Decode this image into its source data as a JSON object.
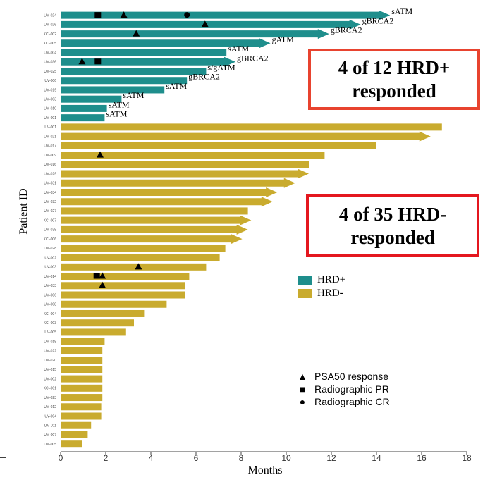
{
  "chart_data": {
    "type": "bar",
    "orientation": "horizontal",
    "xlabel": "Months",
    "ylabel": "Patient ID",
    "xlim": [
      0,
      18
    ],
    "xticks": [
      0,
      2,
      4,
      6,
      8,
      10,
      12,
      14,
      16,
      18
    ],
    "colors": {
      "HRD+": "#1e8e8c",
      "HRD-": "#c9ab2e"
    },
    "legend_series": [
      "HRD+",
      "HRD-"
    ],
    "legend_markers": [
      {
        "shape": "triangle",
        "label": "PSA50 response"
      },
      {
        "shape": "square",
        "label": "Radiographic PR"
      },
      {
        "shape": "circle",
        "label": "Radiographic CR"
      }
    ],
    "callouts": [
      {
        "line1": "4 of 12 HRD+",
        "line2": "responded"
      },
      {
        "line1": "4 of 35 HRD-",
        "line2": "responded"
      }
    ],
    "patients": [
      {
        "id": "UM-024",
        "group": "HRD+",
        "months": 14.6,
        "ongoing": true,
        "mutation": "sATM",
        "markers": [
          {
            "t": 1.65,
            "shape": "square"
          },
          {
            "t": 2.8,
            "shape": "triangle"
          },
          {
            "t": 5.6,
            "shape": "circle"
          }
        ]
      },
      {
        "id": "UM-026",
        "group": "HRD+",
        "months": 13.3,
        "ongoing": true,
        "mutation": "gBRCA2",
        "markers": [
          {
            "t": 6.4,
            "shape": "triangle"
          }
        ]
      },
      {
        "id": "KCI-002",
        "group": "HRD+",
        "months": 11.9,
        "ongoing": true,
        "mutation": "gBRCA2",
        "markers": [
          {
            "t": 3.35,
            "shape": "triangle"
          }
        ]
      },
      {
        "id": "KCI-005",
        "group": "HRD+",
        "months": 9.3,
        "ongoing": true,
        "mutation": "gATM",
        "markers": []
      },
      {
        "id": "UM-004",
        "group": "HRD+",
        "months": 7.35,
        "ongoing": false,
        "mutation": "sATM",
        "markers": []
      },
      {
        "id": "UM-036",
        "group": "HRD+",
        "months": 7.75,
        "ongoing": true,
        "mutation": "gBRCA2",
        "markers": [
          {
            "t": 0.95,
            "shape": "triangle"
          },
          {
            "t": 1.65,
            "shape": "square"
          }
        ]
      },
      {
        "id": "UM-025",
        "group": "HRD+",
        "months": 6.45,
        "ongoing": false,
        "mutation": "s/gATM",
        "markers": []
      },
      {
        "id": "UV-006",
        "group": "HRD+",
        "months": 5.6,
        "ongoing": false,
        "mutation": "gBRCA2",
        "markers": []
      },
      {
        "id": "UM-019",
        "group": "HRD+",
        "months": 4.6,
        "ongoing": false,
        "mutation": "sATM",
        "markers": []
      },
      {
        "id": "UM-003",
        "group": "HRD+",
        "months": 2.7,
        "ongoing": false,
        "mutation": "sATM",
        "markers": []
      },
      {
        "id": "UM-010",
        "group": "HRD+",
        "months": 2.05,
        "ongoing": false,
        "mutation": "sATM",
        "markers": []
      },
      {
        "id": "UM-001",
        "group": "HRD+",
        "months": 1.95,
        "ongoing": false,
        "mutation": "sATM",
        "markers": []
      },
      {
        "id": "UV-001",
        "group": "HRD-",
        "months": 16.9,
        "ongoing": false,
        "markers": []
      },
      {
        "id": "UM-021",
        "group": "HRD-",
        "months": 16.4,
        "ongoing": true,
        "markers": []
      },
      {
        "id": "UM-017",
        "group": "HRD-",
        "months": 14.0,
        "ongoing": false,
        "markers": []
      },
      {
        "id": "UM-009",
        "group": "HRD-",
        "months": 11.7,
        "ongoing": false,
        "markers": [
          {
            "t": 1.75,
            "shape": "triangle"
          }
        ]
      },
      {
        "id": "UM-016",
        "group": "HRD-",
        "months": 11.0,
        "ongoing": false,
        "markers": []
      },
      {
        "id": "UM-029",
        "group": "HRD-",
        "months": 11.0,
        "ongoing": true,
        "markers": []
      },
      {
        "id": "UM-031",
        "group": "HRD-",
        "months": 10.4,
        "ongoing": true,
        "markers": []
      },
      {
        "id": "UM-034",
        "group": "HRD-",
        "months": 9.6,
        "ongoing": true,
        "markers": []
      },
      {
        "id": "UM-032",
        "group": "HRD-",
        "months": 9.4,
        "ongoing": true,
        "markers": []
      },
      {
        "id": "UM-027",
        "group": "HRD-",
        "months": 8.3,
        "ongoing": false,
        "markers": []
      },
      {
        "id": "KCI-007",
        "group": "HRD-",
        "months": 8.45,
        "ongoing": true,
        "markers": []
      },
      {
        "id": "UM-035",
        "group": "HRD-",
        "months": 8.3,
        "ongoing": true,
        "markers": []
      },
      {
        "id": "KCI-006",
        "group": "HRD-",
        "months": 8.05,
        "ongoing": true,
        "markers": []
      },
      {
        "id": "UM-028",
        "group": "HRD-",
        "months": 7.3,
        "ongoing": false,
        "markers": []
      },
      {
        "id": "UV-002",
        "group": "HRD-",
        "months": 7.05,
        "ongoing": false,
        "markers": []
      },
      {
        "id": "UV-003",
        "group": "HRD-",
        "months": 6.45,
        "ongoing": false,
        "markers": [
          {
            "t": 3.45,
            "shape": "triangle"
          }
        ]
      },
      {
        "id": "UM-014",
        "group": "HRD-",
        "months": 5.7,
        "ongoing": false,
        "markers": [
          {
            "t": 1.6,
            "shape": "square"
          },
          {
            "t": 1.85,
            "shape": "triangle"
          }
        ]
      },
      {
        "id": "UM-033",
        "group": "HRD-",
        "months": 5.5,
        "ongoing": false,
        "markers": [
          {
            "t": 1.85,
            "shape": "triangle"
          }
        ]
      },
      {
        "id": "UM-006",
        "group": "HRD-",
        "months": 5.5,
        "ongoing": false,
        "markers": []
      },
      {
        "id": "UM-008",
        "group": "HRD-",
        "months": 4.7,
        "ongoing": false,
        "markers": []
      },
      {
        "id": "KCI-004",
        "group": "HRD-",
        "months": 3.7,
        "ongoing": false,
        "markers": []
      },
      {
        "id": "KCI-003",
        "group": "HRD-",
        "months": 3.25,
        "ongoing": false,
        "markers": []
      },
      {
        "id": "UV-005",
        "group": "HRD-",
        "months": 2.9,
        "ongoing": false,
        "markers": []
      },
      {
        "id": "UM-018",
        "group": "HRD-",
        "months": 1.95,
        "ongoing": false,
        "markers": []
      },
      {
        "id": "UM-022",
        "group": "HRD-",
        "months": 1.85,
        "ongoing": false,
        "markers": []
      },
      {
        "id": "UM-020",
        "group": "HRD-",
        "months": 1.85,
        "ongoing": false,
        "markers": []
      },
      {
        "id": "UM-015",
        "group": "HRD-",
        "months": 1.85,
        "ongoing": false,
        "markers": []
      },
      {
        "id": "UM-002",
        "group": "HRD-",
        "months": 1.85,
        "ongoing": false,
        "markers": []
      },
      {
        "id": "KCI-001",
        "group": "HRD-",
        "months": 1.85,
        "ongoing": false,
        "markers": []
      },
      {
        "id": "UM-023",
        "group": "HRD-",
        "months": 1.85,
        "ongoing": false,
        "markers": []
      },
      {
        "id": "UM-012",
        "group": "HRD-",
        "months": 1.8,
        "ongoing": false,
        "markers": []
      },
      {
        "id": "UV-004",
        "group": "HRD-",
        "months": 1.8,
        "ongoing": false,
        "markers": []
      },
      {
        "id": "UM-011",
        "group": "HRD-",
        "months": 1.35,
        "ongoing": false,
        "markers": []
      },
      {
        "id": "UM-007",
        "group": "HRD-",
        "months": 1.2,
        "ongoing": false,
        "markers": []
      },
      {
        "id": "UM-005",
        "group": "HRD-",
        "months": 0.95,
        "ongoing": false,
        "markers": []
      }
    ]
  }
}
